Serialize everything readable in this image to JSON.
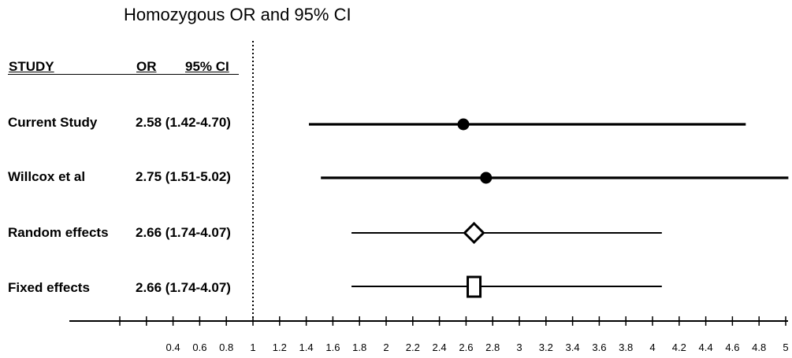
{
  "chart_data": {
    "type": "forest",
    "title": "Homozygous OR and 95% CI",
    "columns": {
      "study": "STUDY",
      "or": "OR",
      "ci": "95% CI"
    },
    "reference_line": 1,
    "xlim": [
      0.0,
      5.0
    ],
    "x_ticks": [
      0.4,
      0.6,
      0.8,
      1,
      1.2,
      1.4,
      1.6,
      1.8,
      2,
      2.2,
      2.4,
      2.6,
      2.8,
      3,
      3.2,
      3.4,
      3.6,
      3.8,
      4,
      4.2,
      4.4,
      4.6,
      4.8,
      5
    ],
    "x_tick_labels": [
      "0.4",
      "0.6",
      "0.8",
      "1",
      "1.2",
      "1.4",
      "1.6",
      "1.8",
      "2",
      "2.2",
      "2.4",
      "2.6",
      "2.8",
      "3",
      "3.2",
      "3.4",
      "3.6",
      "3.8",
      "4",
      "4.2",
      "4.4",
      "4.6",
      "4.8",
      "5"
    ],
    "rows": [
      {
        "study": "Current Study",
        "or": 2.58,
        "lower": 1.42,
        "upper": 4.7,
        "label": "2.58 (1.42-4.70)",
        "marker": "circle"
      },
      {
        "study": "Willcox et al",
        "or": 2.75,
        "lower": 1.51,
        "upper": 5.02,
        "label": "2.75 (1.51-5.02)",
        "marker": "circle"
      },
      {
        "study": "Random effects",
        "or": 2.66,
        "lower": 1.74,
        "upper": 4.07,
        "label": "2.66 (1.74-4.07)",
        "marker": "diamond"
      },
      {
        "study": "Fixed effects",
        "or": 2.66,
        "lower": 1.74,
        "upper": 4.07,
        "label": "2.66 (1.74-4.07)",
        "marker": "square"
      }
    ]
  }
}
